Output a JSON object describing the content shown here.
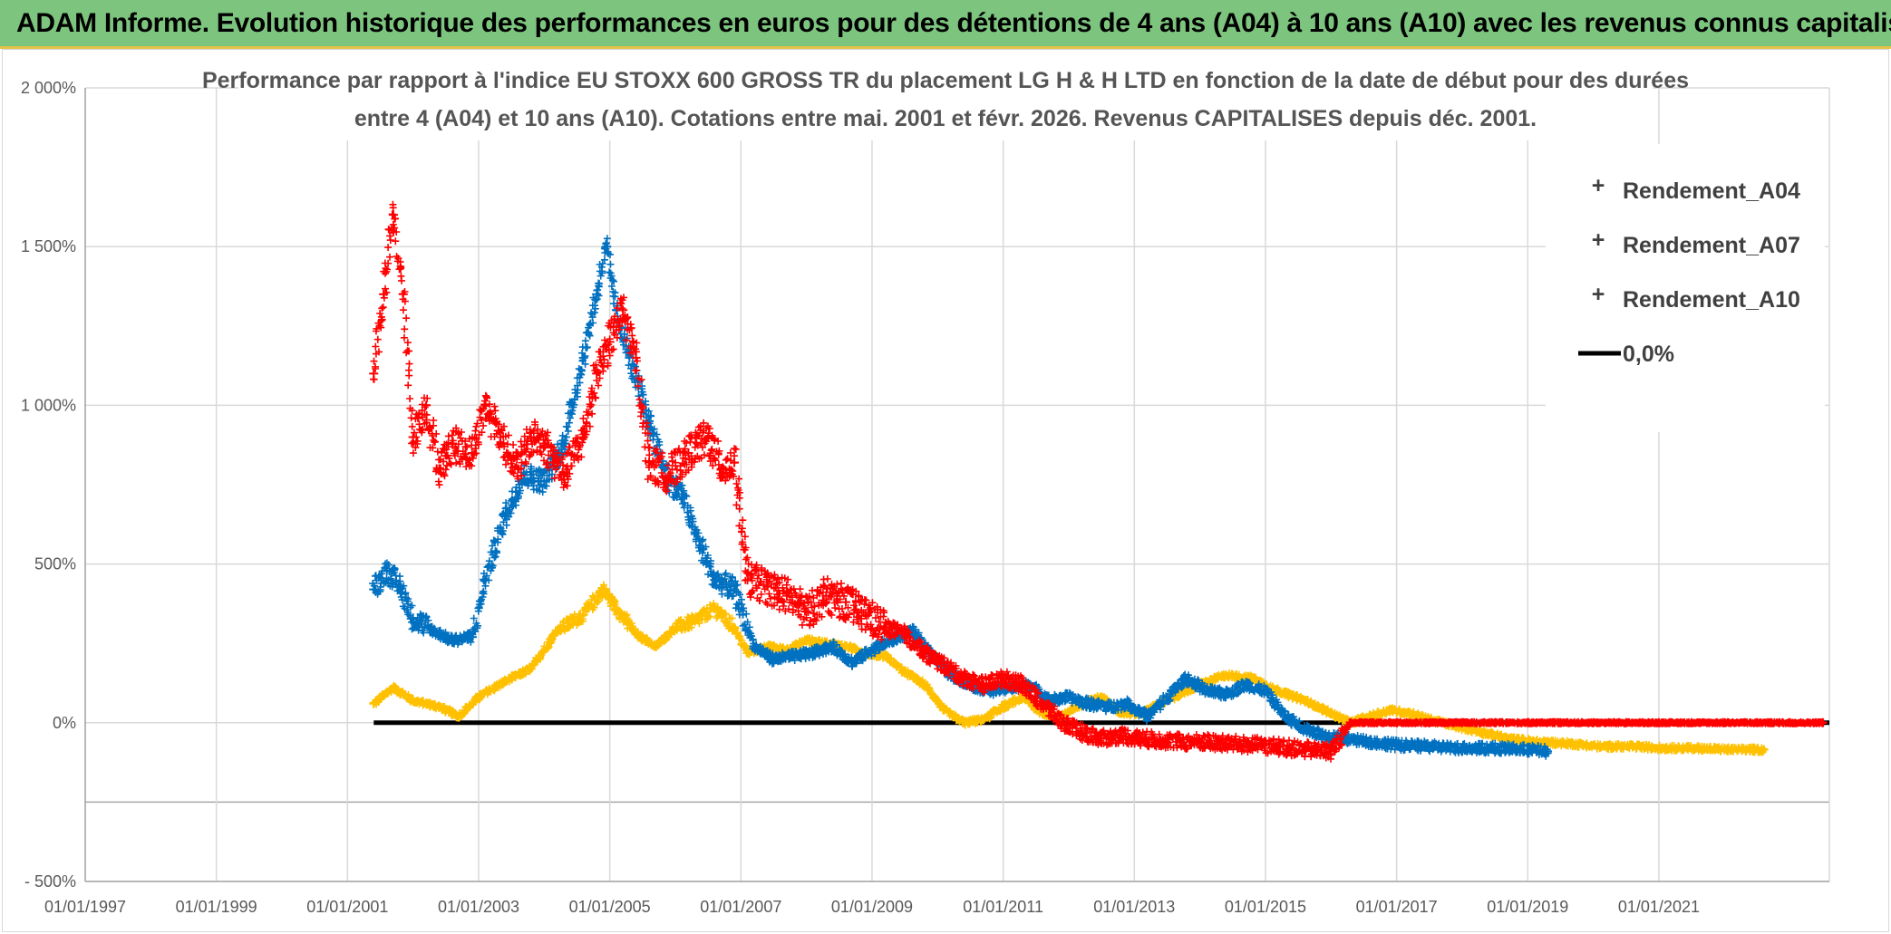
{
  "banner": {
    "title": "ADAM Informe. Evolution historique des performances en euros pour des détentions de 4 ans (A04) à 10 ans (A10) avec les revenus connus capitalisés"
  },
  "colors": {
    "a04": "#ffc000",
    "a07": "#0070c0",
    "a10": "#ff0000",
    "zero": "#000000",
    "grid": "#d9d9d9",
    "banner_bg": "#7dc57e"
  },
  "chart_data": {
    "type": "scatter",
    "title_lines": [
      "Performance par rapport à l'indice EU STOXX 600 GROSS TR  du placement LG H & H LTD en fonction de la date de début pour des durées",
      "entre 4 (A04) et 10 ans (A10). Cotations entre mai. 2001 et févr. 2026. Revenus CAPITALISES depuis déc. 2001."
    ],
    "xlabel": "",
    "ylabel": "",
    "x_range_years": [
      1997.0,
      2023.6
    ],
    "x_ticks": [
      "01/01/1997",
      "01/01/1999",
      "01/01/2001",
      "01/01/2003",
      "01/01/2005",
      "01/01/2007",
      "01/01/2009",
      "01/01/2011",
      "01/01/2013",
      "01/01/2015",
      "01/01/2017",
      "01/01/2019",
      "01/01/2021"
    ],
    "x_tick_years": [
      1997,
      1999,
      2001,
      2003,
      2005,
      2007,
      2009,
      2011,
      2013,
      2015,
      2017,
      2019,
      2021
    ],
    "ylim": [
      -500,
      2000
    ],
    "y_ticks": [
      "2 000%",
      "1 500%",
      "1 000%",
      "500%",
      "0%",
      "- 500%"
    ],
    "y_tick_values": [
      2000,
      1500,
      1000,
      500,
      0,
      -500
    ],
    "extra_gridline_value": -250,
    "legend": [
      "Rendement_A04",
      "Rendement_A07",
      "Rendement_A10",
      "0,0%"
    ],
    "series": [
      {
        "name": "Rendement_A04",
        "color_key": "a04",
        "x": [
          2001.4,
          2001.7,
          2002.0,
          2002.4,
          2002.7,
          2003.0,
          2003.4,
          2003.8,
          2004.2,
          2004.6,
          2004.9,
          2005.1,
          2005.4,
          2005.7,
          2006.0,
          2006.3,
          2006.6,
          2006.9,
          2007.1,
          2007.4,
          2007.7,
          2008.0,
          2008.3,
          2008.6,
          2008.9,
          2009.2,
          2009.5,
          2009.8,
          2010.1,
          2010.4,
          2010.7,
          2011.0,
          2011.3,
          2011.6,
          2011.9,
          2012.2,
          2012.5,
          2012.8,
          2013.1,
          2013.4,
          2013.7,
          2014.0,
          2014.4,
          2014.8,
          2015.2,
          2015.6,
          2016.0,
          2016.3,
          2016.6,
          2016.9,
          2017.2,
          2017.5,
          2017.9,
          2018.3,
          2018.7,
          2019.1,
          2019.6,
          2020.1,
          2020.6,
          2021.1,
          2021.6,
          2022.1,
          2022.6
        ],
        "y": [
          60,
          110,
          70,
          50,
          20,
          80,
          130,
          170,
          290,
          340,
          420,
          360,
          280,
          240,
          300,
          320,
          360,
          300,
          220,
          240,
          230,
          260,
          250,
          240,
          220,
          210,
          160,
          120,
          40,
          0,
          10,
          50,
          80,
          30,
          20,
          60,
          80,
          30,
          30,
          60,
          90,
          120,
          150,
          140,
          100,
          70,
          30,
          0,
          20,
          40,
          30,
          10,
          -10,
          -30,
          -50,
          -60,
          -65,
          -75,
          -75,
          -80,
          -80,
          -85,
          -85
        ]
      },
      {
        "name": "Rendement_A07",
        "color_key": "a07",
        "x": [
          2001.4,
          2001.6,
          2001.8,
          2002.0,
          2002.3,
          2002.6,
          2002.9,
          2003.1,
          2003.4,
          2003.7,
          2004.0,
          2004.3,
          2004.6,
          2004.8,
          2004.95,
          2005.1,
          2005.3,
          2005.6,
          2005.9,
          2006.1,
          2006.3,
          2006.6,
          2006.9,
          2007.2,
          2007.5,
          2007.8,
          2008.1,
          2008.4,
          2008.7,
          2009.0,
          2009.3,
          2009.6,
          2009.9,
          2010.2,
          2010.5,
          2010.8,
          2011.1,
          2011.4,
          2011.7,
          2012.0,
          2012.3,
          2012.6,
          2012.9,
          2013.2,
          2013.5,
          2013.8,
          2014.1,
          2014.4,
          2014.7,
          2015.0,
          2015.3,
          2015.6,
          2015.9,
          2016.2,
          2016.6,
          2017.0,
          2017.5,
          2018.0,
          2018.5,
          2019.0,
          2019.3
        ],
        "y": [
          420,
          480,
          430,
          330,
          290,
          260,
          270,
          450,
          650,
          780,
          760,
          880,
          1150,
          1350,
          1500,
          1300,
          1150,
          950,
          760,
          720,
          600,
          450,
          420,
          240,
          200,
          210,
          220,
          240,
          190,
          230,
          260,
          290,
          220,
          150,
          120,
          100,
          110,
          120,
          70,
          80,
          60,
          50,
          60,
          20,
          80,
          140,
          100,
          90,
          120,
          100,
          20,
          -20,
          -40,
          -50,
          -60,
          -70,
          -75,
          -80,
          -80,
          -85,
          -90
        ]
      },
      {
        "name": "Rendement_A10",
        "color_key": "a10",
        "x": [
          2001.4,
          2001.55,
          2001.7,
          2001.85,
          2002.0,
          2002.2,
          2002.4,
          2002.6,
          2002.9,
          2003.1,
          2003.3,
          2003.6,
          2003.8,
          2004.0,
          2004.3,
          2004.6,
          2004.8,
          2005.0,
          2005.2,
          2005.4,
          2005.6,
          2005.9,
          2006.2,
          2006.5,
          2006.7,
          2006.9,
          2007.1,
          2007.4,
          2007.7,
          2008.0,
          2008.3,
          2008.6,
          2008.9,
          2009.2,
          2009.5,
          2009.8,
          2010.1,
          2010.4,
          2010.7,
          2011.0,
          2011.3,
          2011.6,
          2011.9,
          2012.2,
          2012.5,
          2012.8,
          2013.1,
          2013.4,
          2013.7,
          2014.0,
          2014.4,
          2014.8,
          2015.2,
          2015.6,
          2016.0,
          2016.3,
          2016.6,
          2017.0,
          2017.5,
          2018.0,
          2018.5,
          2019.0,
          2019.5,
          2020.0,
          2020.5,
          2021.0,
          2021.5,
          2022.0,
          2022.5,
          2023.0,
          2023.5
        ],
        "y": [
          1100,
          1350,
          1600,
          1350,
          900,
          1000,
          800,
          880,
          850,
          1000,
          920,
          800,
          900,
          880,
          780,
          900,
          1100,
          1200,
          1300,
          1150,
          820,
          780,
          850,
          900,
          800,
          820,
          450,
          430,
          400,
          350,
          400,
          380,
          340,
          300,
          280,
          220,
          180,
          140,
          120,
          140,
          120,
          60,
          0,
          -30,
          -50,
          -40,
          -50,
          -55,
          -60,
          -60,
          -65,
          -70,
          -75,
          -85,
          -90,
          0,
          0,
          0,
          0,
          0,
          0,
          0,
          0,
          0,
          0,
          0,
          0,
          0,
          0,
          0,
          0
        ]
      },
      {
        "name": "0,0%",
        "color_key": "zero",
        "x": [
          2001.4,
          2023.6
        ],
        "y": [
          0,
          0
        ]
      }
    ]
  }
}
